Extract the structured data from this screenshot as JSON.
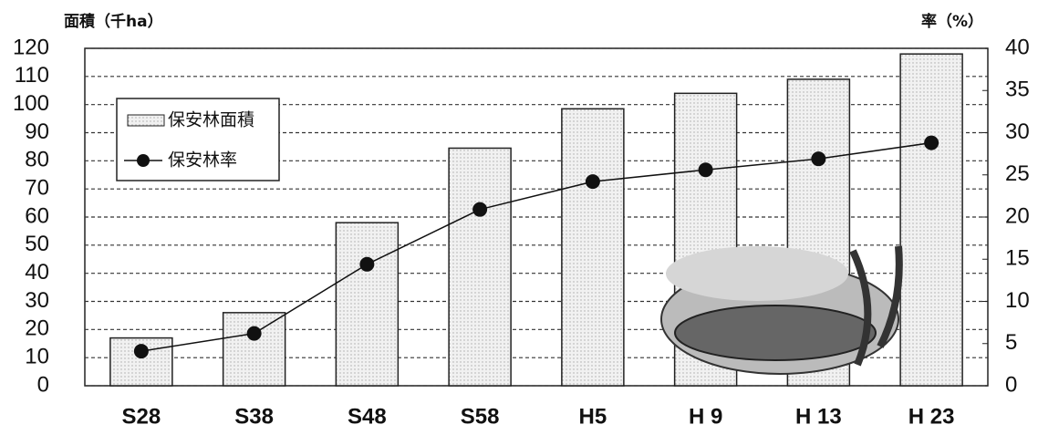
{
  "chart_data": {
    "type": "bar",
    "y_label": "面積（千ha）",
    "y2_label": "率（%）",
    "categories": [
      "S28",
      "S38",
      "S48",
      "S58",
      "H5",
      "H 9",
      "H 13",
      "H 23"
    ],
    "series": [
      {
        "name": "保安林面積",
        "type": "bar",
        "color": "#e8e8e8",
        "values": [
          17,
          26,
          58,
          84.5,
          98.5,
          104,
          109,
          118
        ]
      },
      {
        "name": "保安林率",
        "type": "line",
        "axis": "y2",
        "color": "#111111",
        "values": [
          4.1,
          6.2,
          14.4,
          20.9,
          24.2,
          25.6,
          26.9,
          28.8
        ]
      }
    ],
    "ylim": [
      0,
      120
    ],
    "yticks": [
      0,
      10,
      20,
      30,
      40,
      50,
      60,
      70,
      80,
      90,
      100,
      110,
      120
    ],
    "y2lim": [
      0,
      40
    ],
    "y2ticks": [
      0,
      5,
      10,
      15,
      20,
      25,
      30,
      35,
      40
    ],
    "grid": true,
    "legend": "top-left"
  }
}
